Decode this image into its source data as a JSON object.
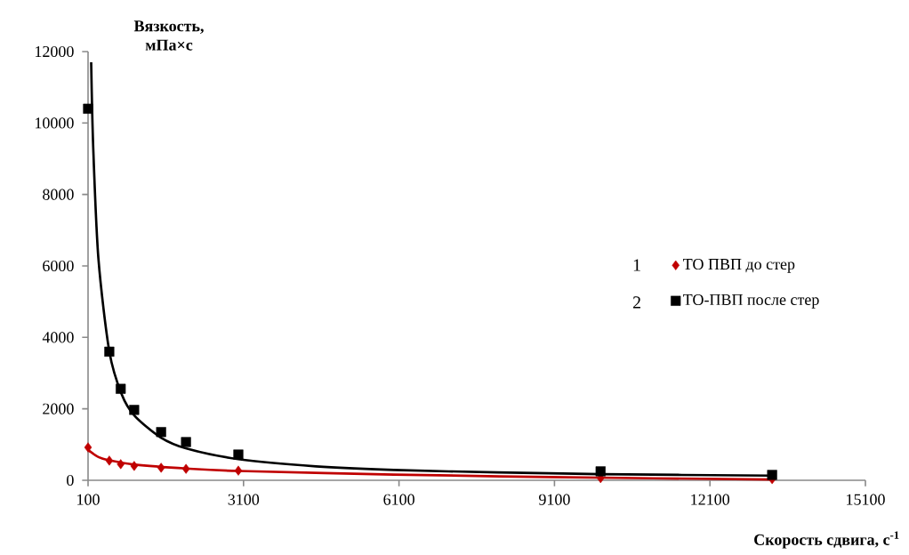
{
  "chart_data": {
    "type": "scatter",
    "xlabel": "Скорость сдвига, с$^{-1}$",
    "ylabel": "Вязкость, мПа×с",
    "xlim": [
      100,
      15100
    ],
    "ylim": [
      0,
      12000
    ],
    "xticks": [
      100,
      3100,
      6100,
      9100,
      12100,
      15100
    ],
    "yticks": [
      0,
      2000,
      4000,
      6000,
      8000,
      10000,
      12000
    ],
    "grid": false,
    "legend": "right",
    "annotations": [
      "1",
      "2"
    ],
    "series": [
      {
        "name": "ТО ПВП до стер",
        "marker": "diamond",
        "color": "#c00000",
        "x": [
          100,
          510,
          730,
          990,
          1510,
          1990,
          3000,
          9990,
          13300
        ],
        "values": [
          920,
          550,
          450,
          400,
          350,
          320,
          270,
          60,
          30
        ]
      },
      {
        "name": "ТО-ПВП после стер",
        "marker": "square",
        "color": "#000000",
        "x": [
          100,
          510,
          730,
          990,
          1510,
          1990,
          3000,
          9990,
          13300
        ],
        "values": [
          10400,
          3600,
          2560,
          1970,
          1350,
          1070,
          720,
          250,
          150
        ]
      },
      {
        "type": "line",
        "marker": "none",
        "color": "#c00000",
        "x": [
          100,
          300,
          500,
          1000,
          2000,
          3000,
          6000,
          9000,
          13300
        ],
        "values": [
          850,
          650,
          560,
          440,
          330,
          260,
          160,
          90,
          20
        ]
      },
      {
        "type": "line",
        "marker": "none",
        "color": "#000000",
        "x": [
          160,
          200,
          300,
          511,
          750,
          1000,
          1500,
          2000,
          3000,
          4500,
          6000,
          8000,
          10000,
          13300
        ],
        "values": [
          11700,
          9300,
          6200,
          3600,
          2400,
          1800,
          1200,
          890,
          590,
          390,
          290,
          220,
          170,
          130
        ]
      }
    ]
  }
}
